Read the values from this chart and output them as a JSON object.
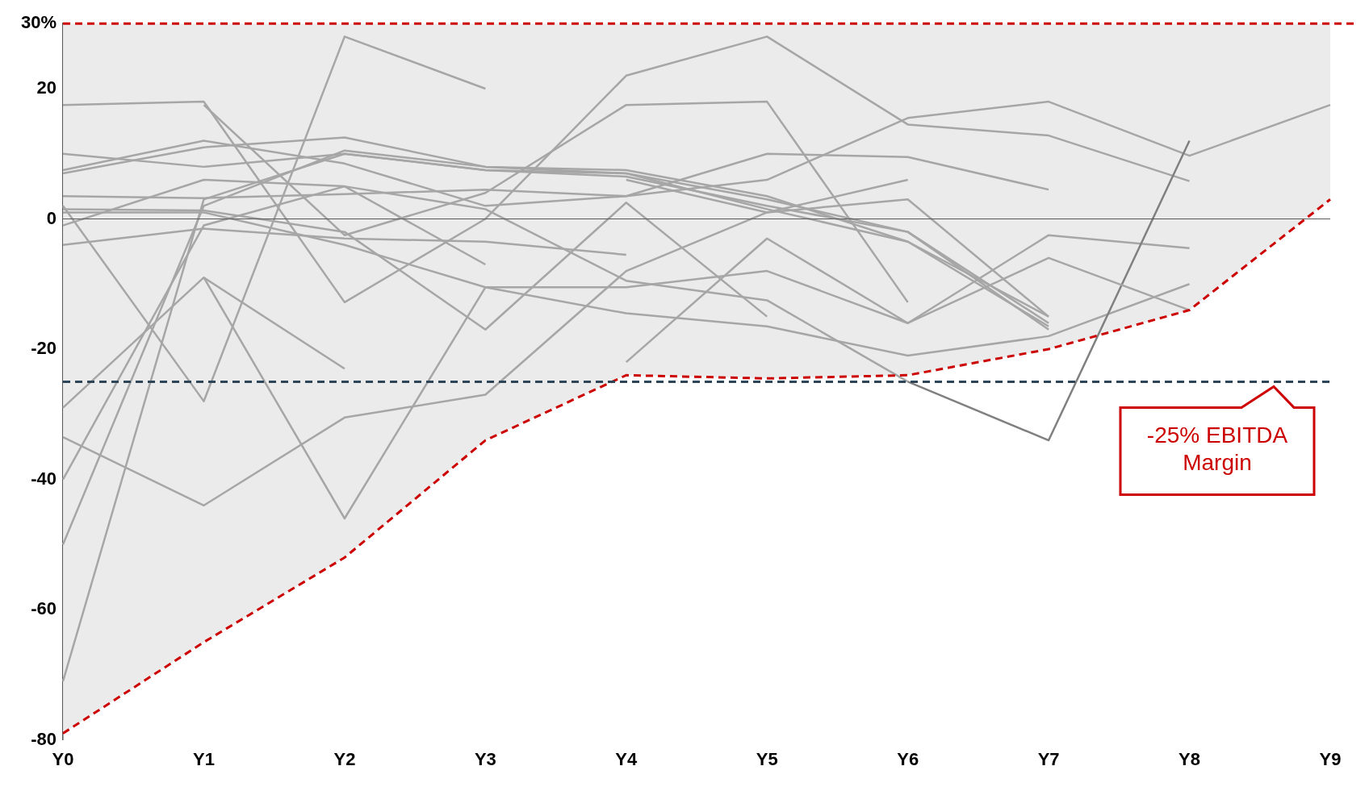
{
  "chart_data": {
    "type": "line",
    "categories": [
      "Y0",
      "Y1",
      "Y2",
      "Y3",
      "Y4",
      "Y5",
      "Y6",
      "Y7",
      "Y8",
      "Y9"
    ],
    "ylim": [
      -80,
      30
    ],
    "yticks": [
      -80,
      -60,
      -40,
      -20,
      0,
      20,
      {
        "value": 30,
        "label": "30%"
      }
    ],
    "grid": false,
    "legend": false,
    "marker": "none",
    "line_style": "solid",
    "series": [
      {
        "color": "#a6a6a6",
        "values": [
          17.5,
          18,
          -12.8,
          0,
          22,
          28,
          14.5,
          12.8,
          5.8,
          null
        ]
      },
      {
        "color": "#a6a6a6",
        "values": [
          2,
          -28,
          28,
          20,
          null,
          null,
          null,
          null,
          null,
          null
        ]
      },
      {
        "color": "#a6a6a6",
        "values": [
          -71,
          3,
          10,
          7.5,
          7,
          3,
          -2,
          -17,
          null,
          null
        ]
      },
      {
        "color": "#a6a6a6",
        "values": [
          -50,
          2,
          10.5,
          8,
          7.5,
          3.5,
          -3.5,
          -16.5,
          null,
          null
        ]
      },
      {
        "color": "#a6a6a6",
        "values": [
          -40,
          -1,
          5,
          -7,
          null,
          null,
          null,
          null,
          null,
          null
        ]
      },
      {
        "color": "#a6a6a6",
        "values": [
          -29,
          -9,
          -23,
          null,
          null,
          null,
          null,
          null,
          null,
          null
        ]
      },
      {
        "color": "#a6a6a6",
        "values": [
          -33.5,
          -44,
          -30.5,
          -27,
          -8,
          1,
          3,
          -15,
          null,
          null
        ]
      },
      {
        "color": "#a6a6a6",
        "values": [
          null,
          -9,
          -46,
          -10.5,
          -10.5,
          -8,
          -16,
          -2.5,
          -4.5,
          null
        ]
      },
      {
        "color": "#a6a6a6",
        "values": [
          null,
          17.5,
          -2.5,
          4,
          17.5,
          18,
          -12.8,
          null,
          null,
          null
        ]
      },
      {
        "color": "#a6a6a6",
        "values": [
          10,
          8,
          10,
          7.5,
          6.5,
          2,
          -2,
          -16,
          null,
          null
        ]
      },
      {
        "color": "#a6a6a6",
        "values": [
          7,
          11,
          12.5,
          8,
          7,
          1.5,
          -3.5,
          -15,
          null,
          null
        ]
      },
      {
        "color": "#a6a6a6",
        "values": [
          7.5,
          12,
          8.5,
          2,
          3.5,
          6,
          15.5,
          18,
          9.7,
          17.5
        ]
      },
      {
        "color": "#a6a6a6",
        "values": [
          3.5,
          3.2,
          3.8,
          4.5,
          3.5,
          10,
          9.5,
          4.5,
          null,
          null
        ]
      },
      {
        "color": "#a6a6a6",
        "values": [
          -4,
          -1.5,
          -3,
          -3.5,
          -5.5,
          null,
          null,
          null,
          null,
          null
        ]
      },
      {
        "color": "#a6a6a6",
        "values": [
          1,
          1,
          -4,
          -10.5,
          -14.5,
          -16.5,
          -21,
          -18,
          -10,
          null
        ]
      },
      {
        "color": "#a6a6a6",
        "values": [
          -1,
          6,
          5,
          1.5,
          -9.5,
          -12.5,
          -25,
          null,
          null,
          null
        ]
      },
      {
        "color": "#808080",
        "values": [
          null,
          null,
          null,
          null,
          null,
          null,
          -25,
          -34,
          12,
          null
        ]
      },
      {
        "color": "#a6a6a6",
        "values": [
          1.5,
          1.3,
          -2,
          -17,
          2.5,
          -15,
          null,
          null,
          null,
          null
        ]
      },
      {
        "color": "#a6a6a6",
        "values": [
          null,
          null,
          null,
          null,
          -22,
          -3,
          -16,
          -6,
          -14,
          null
        ]
      },
      {
        "color": "#a6a6a6",
        "values": [
          null,
          null,
          null,
          null,
          6,
          1,
          6,
          null,
          null,
          null
        ]
      },
      {
        "color": "#cc0000",
        "line_style": "dashed",
        "values": [
          -79,
          -65,
          -52,
          -34,
          -24,
          -24.5,
          -24,
          -20,
          -14,
          3
        ],
        "lower": [
          -79,
          -65,
          -52,
          -34,
          -24,
          -24.5,
          -24,
          -20,
          -14,
          3
        ],
        "upper": [
          30,
          30,
          30,
          30,
          30,
          30,
          30,
          30,
          30,
          30
        ]
      }
    ],
    "ref_lines": [
      {
        "axis": "y",
        "value": 30,
        "color": "#cc0000",
        "line_style": "dashed"
      },
      {
        "axis": "y",
        "value": 0,
        "color": "#595959",
        "line_style": "solid"
      },
      {
        "axis": "y",
        "value": -25,
        "color": "#2e4457",
        "line_style": "dashed",
        "label": "-25% EBITDA Margin"
      }
    ]
  }
}
